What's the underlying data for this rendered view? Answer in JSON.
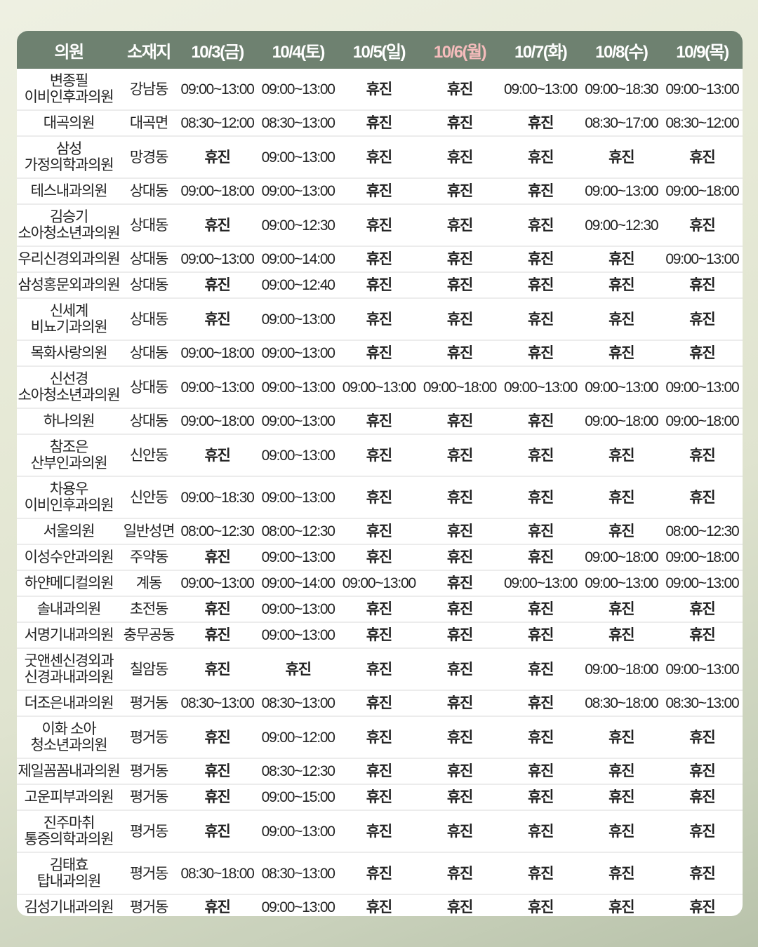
{
  "header": {
    "columns": [
      "의원",
      "소재지",
      "10/3(금)",
      "10/4(토)",
      "10/5(일)",
      "10/6(월)",
      "10/7(화)",
      "10/8(수)",
      "10/9(목)"
    ],
    "highlight_index": 5
  },
  "colors": {
    "header_bg": "#6e8170",
    "header_text": "#ffffff",
    "highlight_text": "#f5bcbc"
  },
  "rows": [
    {
      "name": [
        "변종필",
        "이비인후과의원"
      ],
      "location": "강남동",
      "hours": [
        "09:00~13:00",
        "09:00~13:00",
        "휴진",
        "휴진",
        "09:00~13:00",
        "09:00~18:30",
        "09:00~13:00"
      ]
    },
    {
      "name": [
        "대곡의원"
      ],
      "location": "대곡면",
      "hours": [
        "08:30~12:00",
        "08:30~13:00",
        "휴진",
        "휴진",
        "휴진",
        "08:30~17:00",
        "08:30~12:00"
      ]
    },
    {
      "name": [
        "삼성",
        "가정의학과의원"
      ],
      "location": "망경동",
      "hours": [
        "휴진",
        "09:00~13:00",
        "휴진",
        "휴진",
        "휴진",
        "휴진",
        "휴진"
      ]
    },
    {
      "name": [
        "테스내과의원"
      ],
      "location": "상대동",
      "hours": [
        "09:00~18:00",
        "09:00~13:00",
        "휴진",
        "휴진",
        "휴진",
        "09:00~13:00",
        "09:00~18:00"
      ]
    },
    {
      "name": [
        "김승기",
        "소아청소년과의원"
      ],
      "location": "상대동",
      "hours": [
        "휴진",
        "09:00~12:30",
        "휴진",
        "휴진",
        "휴진",
        "09:00~12:30",
        "휴진"
      ]
    },
    {
      "name": [
        "우리신경외과의원"
      ],
      "location": "상대동",
      "hours": [
        "09:00~13:00",
        "09:00~14:00",
        "휴진",
        "휴진",
        "휴진",
        "휴진",
        "09:00~13:00"
      ]
    },
    {
      "name": [
        "삼성홍문외과의원"
      ],
      "location": "상대동",
      "hours": [
        "휴진",
        "09:00~12:40",
        "휴진",
        "휴진",
        "휴진",
        "휴진",
        "휴진"
      ]
    },
    {
      "name": [
        "신세계",
        "비뇨기과의원"
      ],
      "location": "상대동",
      "hours": [
        "휴진",
        "09:00~13:00",
        "휴진",
        "휴진",
        "휴진",
        "휴진",
        "휴진"
      ]
    },
    {
      "name": [
        "목화사랑의원"
      ],
      "location": "상대동",
      "hours": [
        "09:00~18:00",
        "09:00~13:00",
        "휴진",
        "휴진",
        "휴진",
        "휴진",
        "휴진"
      ]
    },
    {
      "name": [
        "신선경",
        "소아청소년과의원"
      ],
      "location": "상대동",
      "hours": [
        "09:00~13:00",
        "09:00~13:00",
        "09:00~13:00",
        "09:00~18:00",
        "09:00~13:00",
        "09:00~13:00",
        "09:00~13:00"
      ]
    },
    {
      "name": [
        "하나의원"
      ],
      "location": "상대동",
      "hours": [
        "09:00~18:00",
        "09:00~13:00",
        "휴진",
        "휴진",
        "휴진",
        "09:00~18:00",
        "09:00~18:00"
      ]
    },
    {
      "name": [
        "참조은",
        "산부인과의원"
      ],
      "location": "신안동",
      "hours": [
        "휴진",
        "09:00~13:00",
        "휴진",
        "휴진",
        "휴진",
        "휴진",
        "휴진"
      ]
    },
    {
      "name": [
        "차용우",
        "이비인후과의원"
      ],
      "location": "신안동",
      "hours": [
        "09:00~18:30",
        "09:00~13:00",
        "휴진",
        "휴진",
        "휴진",
        "휴진",
        "휴진"
      ]
    },
    {
      "name": [
        "서울의원"
      ],
      "location": "일반성면",
      "hours": [
        "08:00~12:30",
        "08:00~12:30",
        "휴진",
        "휴진",
        "휴진",
        "휴진",
        "08:00~12:30"
      ]
    },
    {
      "name": [
        "이성수안과의원"
      ],
      "location": "주약동",
      "hours": [
        "휴진",
        "09:00~13:00",
        "휴진",
        "휴진",
        "휴진",
        "09:00~18:00",
        "09:00~18:00"
      ]
    },
    {
      "name": [
        "하얀메디컬의원"
      ],
      "location": "계동",
      "hours": [
        "09:00~13:00",
        "09:00~14:00",
        "09:00~13:00",
        "휴진",
        "09:00~13:00",
        "09:00~13:00",
        "09:00~13:00"
      ]
    },
    {
      "name": [
        "솔내과의원"
      ],
      "location": "초전동",
      "hours": [
        "휴진",
        "09:00~13:00",
        "휴진",
        "휴진",
        "휴진",
        "휴진",
        "휴진"
      ]
    },
    {
      "name": [
        "서명기내과의원"
      ],
      "location": "충무공동",
      "hours": [
        "휴진",
        "09:00~13:00",
        "휴진",
        "휴진",
        "휴진",
        "휴진",
        "휴진"
      ]
    },
    {
      "name": [
        "굿앤센신경외과",
        "신경과내과의원"
      ],
      "location": "칠암동",
      "hours": [
        "휴진",
        "휴진",
        "휴진",
        "휴진",
        "휴진",
        "09:00~18:00",
        "09:00~13:00"
      ]
    },
    {
      "name": [
        "더조은내과의원"
      ],
      "location": "평거동",
      "hours": [
        "08:30~13:00",
        "08:30~13:00",
        "휴진",
        "휴진",
        "휴진",
        "08:30~18:00",
        "08:30~13:00"
      ]
    },
    {
      "name": [
        "이화 소아",
        "청소년과의원"
      ],
      "location": "평거동",
      "hours": [
        "휴진",
        "09:00~12:00",
        "휴진",
        "휴진",
        "휴진",
        "휴진",
        "휴진"
      ]
    },
    {
      "name": [
        "제일꼼꼼내과의원"
      ],
      "location": "평거동",
      "hours": [
        "휴진",
        "08:30~12:30",
        "휴진",
        "휴진",
        "휴진",
        "휴진",
        "휴진"
      ]
    },
    {
      "name": [
        "고운피부과의원"
      ],
      "location": "평거동",
      "hours": [
        "휴진",
        "09:00~15:00",
        "휴진",
        "휴진",
        "휴진",
        "휴진",
        "휴진"
      ]
    },
    {
      "name": [
        "진주마취",
        "통증의학과의원"
      ],
      "location": "평거동",
      "hours": [
        "휴진",
        "09:00~13:00",
        "휴진",
        "휴진",
        "휴진",
        "휴진",
        "휴진"
      ]
    },
    {
      "name": [
        "김태효",
        "탑내과의원"
      ],
      "location": "평거동",
      "hours": [
        "08:30~18:00",
        "08:30~13:00",
        "휴진",
        "휴진",
        "휴진",
        "휴진",
        "휴진"
      ]
    },
    {
      "name": [
        "김성기내과의원"
      ],
      "location": "평거동",
      "hours": [
        "휴진",
        "09:00~13:00",
        "휴진",
        "휴진",
        "휴진",
        "휴진",
        "휴진"
      ]
    }
  ]
}
